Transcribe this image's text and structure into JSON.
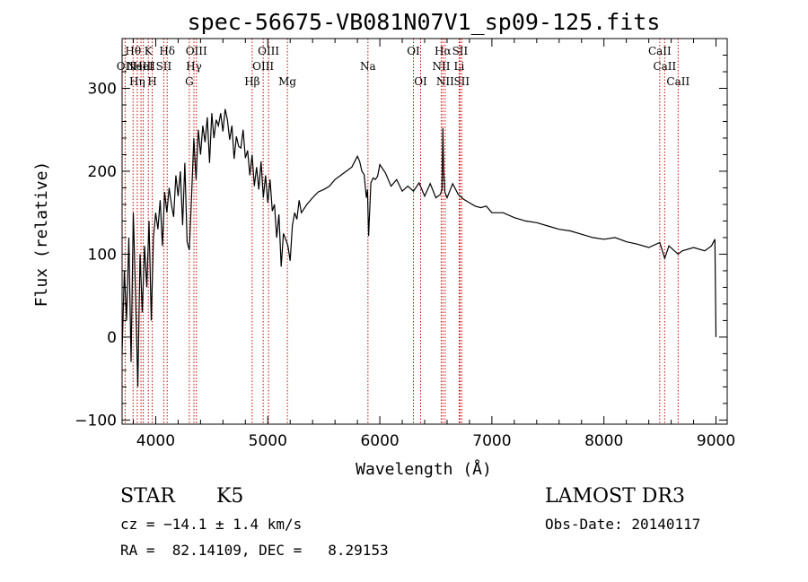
{
  "chart_data": {
    "type": "line",
    "title": "spec-56675-VB081N07V1_sp09-125.fits",
    "xlabel": "Wavelength (Å)",
    "ylabel": "Flux (relative)",
    "xlim": [
      3700,
      9100
    ],
    "ylim": [
      -105,
      360
    ],
    "x_ticks": [
      4000,
      5000,
      6000,
      7000,
      8000,
      9000
    ],
    "x_tick_labels": [
      "4000",
      "5000",
      "6000",
      "7000",
      "8000",
      "9000"
    ],
    "y_ticks": [
      -100,
      0,
      100,
      200,
      300
    ],
    "y_tick_labels": [
      "-100",
      "0",
      "100",
      "200",
      "300"
    ],
    "grid": false,
    "series": [
      {
        "x": [
          3700,
          3720,
          3740,
          3760,
          3780,
          3800,
          3820,
          3840,
          3860,
          3880,
          3900,
          3920,
          3940,
          3960,
          3980,
          4000,
          4020,
          4040,
          4060,
          4080,
          4100,
          4120,
          4140,
          4160,
          4180,
          4200,
          4220,
          4240,
          4260,
          4280,
          4300,
          4320,
          4340,
          4360,
          4380,
          4400,
          4420,
          4440,
          4460,
          4480,
          4500,
          4520,
          4540,
          4560,
          4580,
          4600,
          4620,
          4640,
          4660,
          4680,
          4700,
          4720,
          4740,
          4760,
          4780,
          4800,
          4820,
          4840,
          4860,
          4880,
          4900,
          4920,
          4940,
          4960,
          4980,
          5000,
          5020,
          5040,
          5060,
          5080,
          5100,
          5120,
          5140,
          5160,
          5180,
          5200,
          5220,
          5240,
          5260,
          5280,
          5300,
          5350,
          5400,
          5450,
          5500,
          5550,
          5600,
          5650,
          5700,
          5750,
          5800,
          5820,
          5840,
          5860,
          5880,
          5890,
          5900,
          5920,
          5940,
          5960,
          5980,
          6000,
          6050,
          6100,
          6150,
          6200,
          6250,
          6300,
          6350,
          6400,
          6450,
          6500,
          6540,
          6555,
          6563,
          6570,
          6580,
          6600,
          6650,
          6700,
          6750,
          6800,
          6850,
          6900,
          6950,
          7000,
          7100,
          7200,
          7300,
          7400,
          7500,
          7600,
          7700,
          7800,
          7900,
          8000,
          8100,
          8200,
          8300,
          8400,
          8498,
          8542,
          8580,
          8662,
          8700,
          8800,
          8900,
          8960,
          8990,
          9000
        ],
        "y": [
          -20,
          80,
          20,
          120,
          -30,
          150,
          50,
          -60,
          100,
          30,
          110,
          60,
          140,
          20,
          120,
          150,
          130,
          165,
          110,
          175,
          150,
          180,
          160,
          145,
          195,
          170,
          200,
          135,
          210,
          115,
          105,
          170,
          240,
          190,
          250,
          220,
          255,
          235,
          265,
          210,
          270,
          240,
          262,
          255,
          270,
          248,
          275,
          262,
          238,
          255,
          215,
          242,
          230,
          228,
          250,
          216,
          225,
          195,
          220,
          182,
          205,
          178,
          212,
          168,
          195,
          162,
          190,
          152,
          160,
          120,
          148,
          85,
          125,
          118,
          110,
          92,
          135,
          150,
          142,
          165,
          150,
          160,
          168,
          175,
          178,
          182,
          190,
          195,
          200,
          205,
          218,
          212,
          200,
          196,
          168,
          178,
          122,
          186,
          192,
          190,
          194,
          208,
          198,
          182,
          190,
          176,
          182,
          176,
          186,
          170,
          185,
          168,
          172,
          178,
          252,
          200,
          175,
          168,
          185,
          172,
          166,
          162,
          158,
          156,
          158,
          150,
          150,
          144,
          140,
          138,
          134,
          130,
          128,
          124,
          120,
          118,
          120,
          115,
          112,
          108,
          114,
          95,
          110,
          100,
          104,
          108,
          104,
          110,
          118,
          0
        ]
      }
    ],
    "spectral_lines": [
      {
        "wavelength": 3727,
        "label": "OII",
        "row": 2
      },
      {
        "wavelength": 3798,
        "label": "Hθ",
        "row": 1
      },
      {
        "wavelength": 3835,
        "label": "Hη",
        "row": 3
      },
      {
        "wavelength": 3869,
        "label": "NeIII",
        "row": 2
      },
      {
        "wavelength": 3889,
        "label": "HeI",
        "row": 2
      },
      {
        "wavelength": 3934,
        "label": "K",
        "row": 1
      },
      {
        "wavelength": 3969,
        "label": "H",
        "row": 3
      },
      {
        "wavelength": 4072,
        "label": "SII",
        "row": 2
      },
      {
        "wavelength": 4102,
        "label": "Hδ",
        "row": 1
      },
      {
        "wavelength": 4300,
        "label": "G",
        "row": 3
      },
      {
        "wavelength": 4341,
        "label": "Hγ",
        "row": 2
      },
      {
        "wavelength": 4363,
        "label": "OIII",
        "row": 1
      },
      {
        "wavelength": 4861,
        "label": "Hβ",
        "row": 3
      },
      {
        "wavelength": 4959,
        "label": "OIII",
        "row": 2
      },
      {
        "wavelength": 5007,
        "label": "OIII",
        "row": 1
      },
      {
        "wavelength": 5175,
        "label": "Mg",
        "row": 3
      },
      {
        "wavelength": 5894,
        "label": "Na",
        "row": 2
      },
      {
        "wavelength": 6300,
        "label": "OI",
        "row": 1
      },
      {
        "wavelength": 6364,
        "label": "OI",
        "row": 3
      },
      {
        "wavelength": 6548,
        "label": "NII",
        "row": 2
      },
      {
        "wavelength": 6563,
        "label": "Hα",
        "row": 1
      },
      {
        "wavelength": 6583,
        "label": "NII",
        "row": 3
      },
      {
        "wavelength": 6708,
        "label": "Li",
        "row": 2
      },
      {
        "wavelength": 6716,
        "label": "SII",
        "row": 1
      },
      {
        "wavelength": 6731,
        "label": "SII",
        "row": 3
      },
      {
        "wavelength": 8498,
        "label": "CaII",
        "row": 1
      },
      {
        "wavelength": 8542,
        "label": "CaII",
        "row": 2
      },
      {
        "wavelength": 8662,
        "label": "CaII",
        "row": 3
      }
    ]
  },
  "info": {
    "class_label": "STAR",
    "subclass_label": "K5",
    "survey": "LAMOST DR3",
    "cz": "cz = −14.1 ± 1.4 km/s",
    "obs_date": "Obs-Date: 20140117",
    "coords": "RA =  82.14109, DEC =   8.29153"
  },
  "colors": {
    "spectrum": "#000000",
    "line_markers": "#cc0000",
    "axes": "#000000"
  }
}
